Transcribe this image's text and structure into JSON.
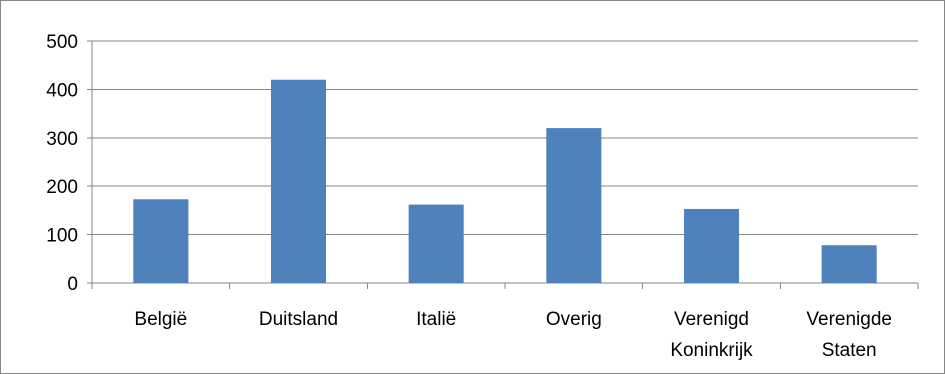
{
  "chart_data": {
    "type": "bar",
    "title": "",
    "xlabel": "",
    "ylabel": "",
    "categories": [
      "België",
      "Duitsland",
      "Italië",
      "Overig",
      "Verenigd Koninkrijk",
      "Verenigde Staten"
    ],
    "category_lines": [
      [
        "België"
      ],
      [
        "Duitsland"
      ],
      [
        "Italië"
      ],
      [
        "Overig"
      ],
      [
        "Verenigd",
        "Koninkrijk"
      ],
      [
        "Verenigde",
        "Staten"
      ]
    ],
    "values": [
      173,
      420,
      162,
      320,
      153,
      78
    ],
    "ylim": [
      0,
      500
    ],
    "yticks": [
      0,
      100,
      200,
      300,
      400,
      500
    ],
    "grid": true,
    "legend": "none",
    "colors": {
      "bar": "#4F81BD",
      "grid": "#868686",
      "axis": "#868686"
    }
  }
}
